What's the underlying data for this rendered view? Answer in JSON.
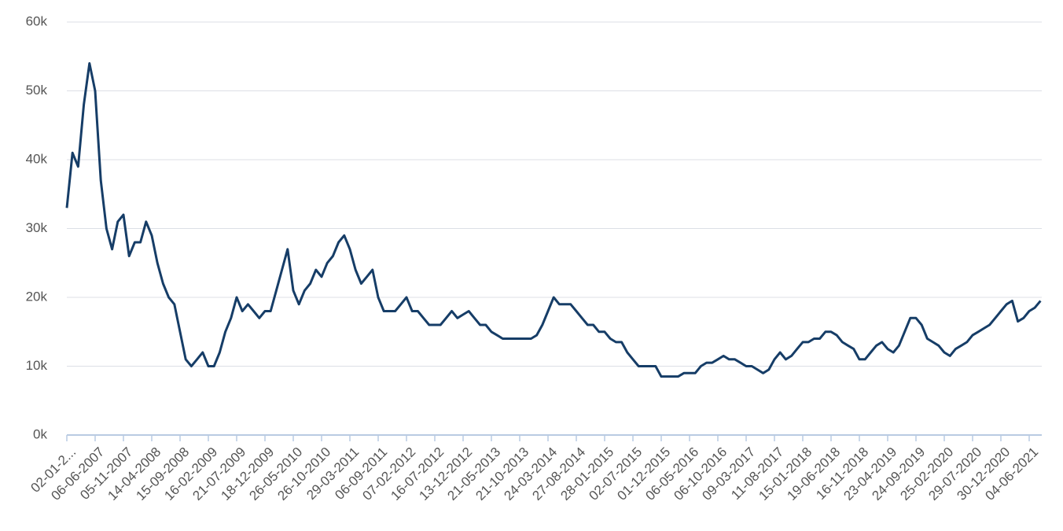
{
  "chart_data": {
    "type": "line",
    "categories": [
      "02-01-2...",
      null,
      null,
      null,
      null,
      "06-06-2007",
      null,
      null,
      null,
      null,
      "05-11-2007",
      null,
      null,
      null,
      null,
      "14-04-2008",
      null,
      null,
      null,
      null,
      "15-09-2008",
      null,
      null,
      null,
      null,
      "16-02-2009",
      null,
      null,
      null,
      null,
      "21-07-2009",
      null,
      null,
      null,
      null,
      "18-12-2009",
      null,
      null,
      null,
      null,
      "26-05-2010",
      null,
      null,
      null,
      null,
      "26-10-2010",
      null,
      null,
      null,
      null,
      "29-03-2011",
      null,
      null,
      null,
      null,
      "06-09-2011",
      null,
      null,
      null,
      null,
      "07-02-2012",
      null,
      null,
      null,
      null,
      "16-07-2012",
      null,
      null,
      null,
      null,
      "13-12-2012",
      null,
      null,
      null,
      null,
      "21-05-2013",
      null,
      null,
      null,
      null,
      "21-10-2013",
      null,
      null,
      null,
      null,
      "24-03-2014",
      null,
      null,
      null,
      null,
      "27-08-2014",
      null,
      null,
      null,
      null,
      "28-01-2015",
      null,
      null,
      null,
      null,
      "02-07-2015",
      null,
      null,
      null,
      null,
      "01-12-2015",
      null,
      null,
      null,
      null,
      "06-05-2016",
      null,
      null,
      null,
      null,
      "06-10-2016",
      null,
      null,
      null,
      null,
      "09-03-2017",
      null,
      null,
      null,
      null,
      "11-08-2017",
      null,
      null,
      null,
      null,
      "15-01-2018",
      null,
      null,
      null,
      null,
      "19-06-2018",
      null,
      null,
      null,
      null,
      "16-11-2018",
      null,
      null,
      null,
      null,
      "23-04-2019",
      null,
      null,
      null,
      null,
      "24-09-2019",
      null,
      null,
      null,
      null,
      "25-02-2020",
      null,
      null,
      null,
      null,
      "29-07-2020",
      null,
      null,
      null,
      null,
      "30-12-2020",
      null,
      null,
      null,
      null,
      "04-06-2021",
      null,
      null
    ],
    "series": [
      {
        "color": "#163d67",
        "values": [
          33000,
          41000,
          39000,
          48000,
          54000,
          50000,
          37000,
          30000,
          27000,
          31000,
          32000,
          26000,
          28000,
          28000,
          31000,
          29000,
          25000,
          22000,
          20000,
          19000,
          15000,
          11000,
          10000,
          11000,
          12000,
          10000,
          10000,
          12000,
          15000,
          17000,
          20000,
          18000,
          19000,
          18000,
          17000,
          18000,
          18000,
          21000,
          24000,
          27000,
          21000,
          19000,
          21000,
          22000,
          24000,
          23000,
          25000,
          26000,
          28000,
          29000,
          27000,
          24000,
          22000,
          23000,
          24000,
          20000,
          18000,
          18000,
          18000,
          19000,
          20000,
          18000,
          18000,
          17000,
          16000,
          16000,
          16000,
          17000,
          18000,
          17000,
          17500,
          18000,
          17000,
          16000,
          16000,
          15000,
          14500,
          14000,
          14000,
          14000,
          14000,
          14000,
          14000,
          14500,
          16000,
          18000,
          20000,
          19000,
          19000,
          19000,
          18000,
          17000,
          16000,
          16000,
          15000,
          15000,
          14000,
          13500,
          13500,
          12000,
          11000,
          10000,
          10000,
          10000,
          10000,
          8500,
          8500,
          8500,
          8500,
          9000,
          9000,
          9000,
          10000,
          10500,
          10500,
          11000,
          11500,
          11000,
          11000,
          10500,
          10000,
          10000,
          9500,
          9000,
          9500,
          11000,
          12000,
          11000,
          11500,
          12500,
          13500,
          13500,
          14000,
          14000,
          15000,
          15000,
          14500,
          13500,
          13000,
          12500,
          11000,
          11000,
          12000,
          13000,
          13500,
          12500,
          12000,
          13000,
          15000,
          17000,
          17000,
          16000,
          14000,
          13500,
          13000,
          12000,
          11500,
          12500,
          13000,
          13500,
          14500,
          15000,
          15500,
          16000,
          17000,
          18000,
          19000,
          19500,
          16500,
          17000,
          18000,
          18500,
          19500
        ]
      }
    ],
    "ylim": [
      0,
      60000
    ],
    "yticks": [
      {
        "value": 0,
        "label": "0k"
      },
      {
        "value": 10000,
        "label": "10k"
      },
      {
        "value": 20000,
        "label": "20k"
      },
      {
        "value": 30000,
        "label": "30k"
      },
      {
        "value": 40000,
        "label": "40k"
      },
      {
        "value": 50000,
        "label": "50k"
      },
      {
        "value": 60000,
        "label": "60k"
      }
    ],
    "grid": true
  }
}
